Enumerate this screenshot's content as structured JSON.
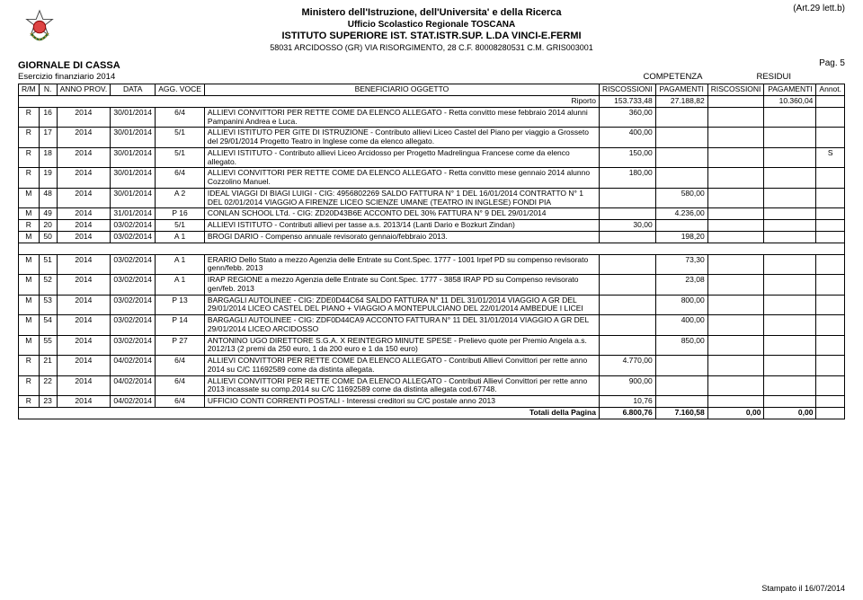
{
  "header": {
    "art_ref": "(Art.29 lett.b)",
    "line1": "Ministero dell'Istruzione, dell'Universita' e della Ricerca",
    "line2": "Ufficio Scolastico Regionale TOSCANA",
    "line3": "ISTITUTO SUPERIORE IST. STAT.ISTR.SUP. L.DA VINCI-E.FERMI",
    "line4": "58031 ARCIDOSSO (GR) VIA RISORGIMENTO, 28 C.F. 80008280531 C.M. GRIS003001",
    "pag": "Pag. 5"
  },
  "section": {
    "title": "GIORNALE DI CASSA",
    "subtitle": "Esercizio finanziario 2014",
    "comp": "COMPETENZA",
    "resid": "RESIDUI"
  },
  "columns": {
    "rm": "R/M",
    "n": "N.",
    "anno": "ANNO PROV.",
    "data": "DATA",
    "agg": "AGG. VOCE",
    "bo": "BENEFICIARIO OGGETTO",
    "risc": "RISCOSSIONI",
    "pag": "PAGAMENTI",
    "annot": "Annot."
  },
  "riporto": {
    "label": "Riporto",
    "c_risc": "153.733,48",
    "c_pag": "27.188,82",
    "r_risc": "",
    "r_pag": "10.360,04"
  },
  "rows": [
    {
      "rm": "R",
      "n": "16",
      "anno": "2014",
      "data": "30/01/2014",
      "agg": "6/4",
      "desc": "ALLIEVI CONVITTORI PER RETTE COME DA ELENCO ALLEGATO - Retta convitto mese febbraio 2014 alunni Pampanini Andrea e Luca.",
      "c_risc": "360,00",
      "c_pag": "",
      "r_risc": "",
      "r_pag": "",
      "annot": ""
    },
    {
      "rm": "R",
      "n": "17",
      "anno": "2014",
      "data": "30/01/2014",
      "agg": "5/1",
      "desc": "ALLIEVI ISTITUTO PER GITE DI ISTRUZIONE - Contributo allievi Liceo Castel del Piano per viaggio a Grosseto del 29/01/2014 Progetto Teatro in Inglese come da elenco allegato.",
      "c_risc": "400,00",
      "c_pag": "",
      "r_risc": "",
      "r_pag": "",
      "annot": ""
    },
    {
      "rm": "R",
      "n": "18",
      "anno": "2014",
      "data": "30/01/2014",
      "agg": "5/1",
      "desc": "ALLIEVI ISTITUTO - Contributo allievi Liceo Arcidosso per Progetto Madrelingua Francese come da elenco allegato.",
      "c_risc": "150,00",
      "c_pag": "",
      "r_risc": "",
      "r_pag": "",
      "annot": "S"
    },
    {
      "rm": "R",
      "n": "19",
      "anno": "2014",
      "data": "30/01/2014",
      "agg": "6/4",
      "desc": "ALLIEVI CONVITTORI PER RETTE COME DA ELENCO ALLEGATO - Retta convitto mese gennaio 2014 alunno Cozzolino Manuel.",
      "c_risc": "180,00",
      "c_pag": "",
      "r_risc": "",
      "r_pag": "",
      "annot": ""
    },
    {
      "rm": "M",
      "n": "48",
      "anno": "2014",
      "data": "30/01/2014",
      "agg": "A 2",
      "desc": "IDEAL VIAGGI DI BIAGI LUIGI - CIG: 4956802269 SALDO FATTURA N° 1 DEL 16/01/2014 CONTRATTO N° 1 DEL 02/01/2014 VIAGGIO A FIRENZE LICEO SCIENZE UMANE (TEATRO IN INGLESE) FONDI PIA",
      "c_risc": "",
      "c_pag": "580,00",
      "r_risc": "",
      "r_pag": "",
      "annot": ""
    },
    {
      "rm": "M",
      "n": "49",
      "anno": "2014",
      "data": "31/01/2014",
      "agg": "P 16",
      "desc": "CONLAN SCHOOL LTd. - CIG: ZD20D43B6E ACCONTO DEL 30% FATTURA N° 9 DEL 29/01/2014",
      "c_risc": "",
      "c_pag": "4.236,00",
      "r_risc": "",
      "r_pag": "",
      "annot": ""
    },
    {
      "rm": "R",
      "n": "20",
      "anno": "2014",
      "data": "03/02/2014",
      "agg": "5/1",
      "desc": "ALLIEVI ISTITUTO - Contributi allievi per tasse a.s. 2013/14 (Lanti Dario e Bozkurt Zindan)",
      "c_risc": "30,00",
      "c_pag": "",
      "r_risc": "",
      "r_pag": "",
      "annot": ""
    },
    {
      "rm": "M",
      "n": "50",
      "anno": "2014",
      "data": "03/02/2014",
      "agg": "A 1",
      "desc": "BROGI DARIO - Compenso annuale revisorato gennaio/febbraio 2013.",
      "c_risc": "",
      "c_pag": "198,20",
      "r_risc": "",
      "r_pag": "",
      "annot": ""
    },
    {
      "rm": "M",
      "n": "51",
      "anno": "2014",
      "data": "03/02/2014",
      "agg": "A 1",
      "desc": "ERARIO Dello Stato a mezzo Agenzia delle Entrate su Cont.Spec. 1777 - 1001 Irpef PD su compenso revisorato genn/febb. 2013",
      "c_risc": "",
      "c_pag": "73,30",
      "r_risc": "",
      "r_pag": "",
      "annot": ""
    },
    {
      "rm": "M",
      "n": "52",
      "anno": "2014",
      "data": "03/02/2014",
      "agg": "A 1",
      "desc": "IRAP REGIONE a mezzo Agenzia delle Entrate su Cont.Spec. 1777 - 3858 IRAP PD su Compenso revisorato gen/feb. 2013",
      "c_risc": "",
      "c_pag": "23,08",
      "r_risc": "",
      "r_pag": "",
      "annot": ""
    },
    {
      "rm": "M",
      "n": "53",
      "anno": "2014",
      "data": "03/02/2014",
      "agg": "P 13",
      "desc": "BARGAGLI AUTOLINEE - CIG: ZDE0D44C64 SALDO FATTURA N° 11 DEL 31/01/2014 VIAGGIO A GR DEL 29/01/2014 LICEO CASTEL DEL PIANO + VIAGGIO A MONTEPULCIANO DEL 22/01/2014 AMBEDUE I LICEI",
      "c_risc": "",
      "c_pag": "800,00",
      "r_risc": "",
      "r_pag": "",
      "annot": ""
    },
    {
      "rm": "M",
      "n": "54",
      "anno": "2014",
      "data": "03/02/2014",
      "agg": "P 14",
      "desc": "BARGAGLI AUTOLINEE - CIG: ZDF0D44CA9 ACCONTO FATTURA N° 11 DEL 31/01/2014 VIAGGIO A GR DEL 29/01/2014 LICEO ARCIDOSSO",
      "c_risc": "",
      "c_pag": "400,00",
      "r_risc": "",
      "r_pag": "",
      "annot": ""
    },
    {
      "rm": "M",
      "n": "55",
      "anno": "2014",
      "data": "03/02/2014",
      "agg": "P 27",
      "desc": "ANTONINO UGO DIRETTORE S.G.A. X REINTEGRO MINUTE SPESE - Prelievo quote per Premio Angela a.s. 2012/13 (2 premi da 250 euro, 1 da 200 euro e 1 da 150 euro)",
      "c_risc": "",
      "c_pag": "850,00",
      "r_risc": "",
      "r_pag": "",
      "annot": ""
    },
    {
      "rm": "R",
      "n": "21",
      "anno": "2014",
      "data": "04/02/2014",
      "agg": "6/4",
      "desc": "ALLIEVI CONVITTORI PER RETTE COME DA ELENCO ALLEGATO - Contributi Allievi Convittori per rette anno 2014 su C/C 11692589 come da distinta allegata.",
      "c_risc": "4.770,00",
      "c_pag": "",
      "r_risc": "",
      "r_pag": "",
      "annot": ""
    },
    {
      "rm": "R",
      "n": "22",
      "anno": "2014",
      "data": "04/02/2014",
      "agg": "6/4",
      "desc": "ALLIEVI CONVITTORI PER RETTE COME DA ELENCO ALLEGATO - Contributi Allievi Convittori per rette anno 2013 incassate su comp.2014 su C/C 11692589 come da distinta allegata cod.67748.",
      "c_risc": "900,00",
      "c_pag": "",
      "r_risc": "",
      "r_pag": "",
      "annot": ""
    },
    {
      "rm": "R",
      "n": "23",
      "anno": "2014",
      "data": "04/02/2014",
      "agg": "6/4",
      "desc": "UFFICIO CONTI CORRENTI POSTALI - Interessi creditori su C/C postale anno 2013",
      "c_risc": "10,76",
      "c_pag": "",
      "r_risc": "",
      "r_pag": "",
      "annot": ""
    }
  ],
  "totali": {
    "label": "Totali della Pagina",
    "c_risc": "6.800,76",
    "c_pag": "7.160,58",
    "r_risc": "0,00",
    "r_pag": "0,00"
  },
  "footer": {
    "printed": "Stampato il 16/07/2014"
  },
  "spacer_rows": [
    7
  ]
}
